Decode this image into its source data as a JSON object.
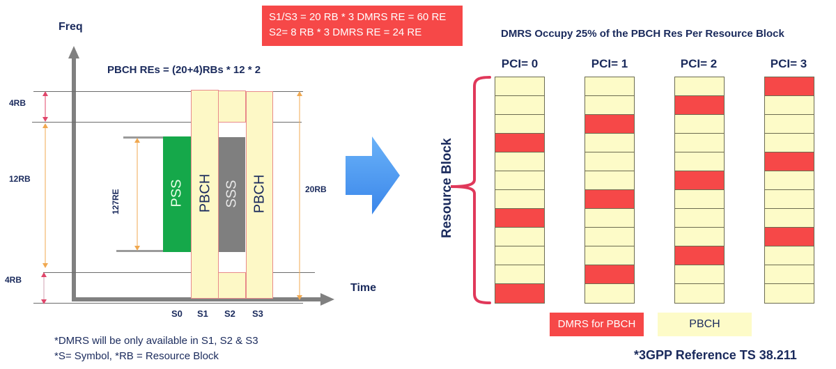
{
  "left_diagram": {
    "axis_freq_label": "Freq",
    "axis_time_label": "Time",
    "formula": "PBCH REs = (20+4)RBs * 12 * 2",
    "dimension_labels": {
      "top": "4RB",
      "middle": "12RB",
      "bottom": "4RB",
      "total": "20RB",
      "pss_height": "127RE"
    },
    "blocks": {
      "pss": "PSS",
      "pbch_s1": "PBCH",
      "sss": "SSS",
      "pbch_s3": "PBCH"
    },
    "symbols": [
      "S0",
      "S1",
      "S2",
      "S3"
    ],
    "notes": [
      "*DMRS will be only available in S1, S2 & S3",
      "*S= Symbol, *RB = Resource Block"
    ]
  },
  "info_box": {
    "line1": "S1/S3 = 20 RB * 3 DMRS RE = 60 RE",
    "line2": "S2= 8 RB * 3 DMRS RE = 24 RE"
  },
  "right_diagram": {
    "title": "DMRS Occupy 25% of the PBCH Res Per Resource Block",
    "brace_label": "Resource Block",
    "columns": [
      {
        "label": "PCI= 0",
        "dmrs_rows": [
          3,
          7,
          11
        ]
      },
      {
        "label": "PCI= 1",
        "dmrs_rows": [
          2,
          6,
          10
        ]
      },
      {
        "label": "PCI= 2",
        "dmrs_rows": [
          1,
          5,
          9
        ]
      },
      {
        "label": "PCI= 3",
        "dmrs_rows": [
          0,
          4,
          8
        ]
      }
    ],
    "rows_per_block": 12,
    "legend": {
      "dmrs": "DMRS for PBCH",
      "pbch": "PBCH"
    },
    "reference": "*3GPP Reference TS 38.211"
  },
  "colors": {
    "dmrs_red": "#f64848",
    "pbch_yellow": "#fdfbc8",
    "pss_green": "#15a84a",
    "sss_gray": "#7f7f7f",
    "text_navy": "#1a2a5c",
    "arrow_blue": "#4a9af0"
  }
}
